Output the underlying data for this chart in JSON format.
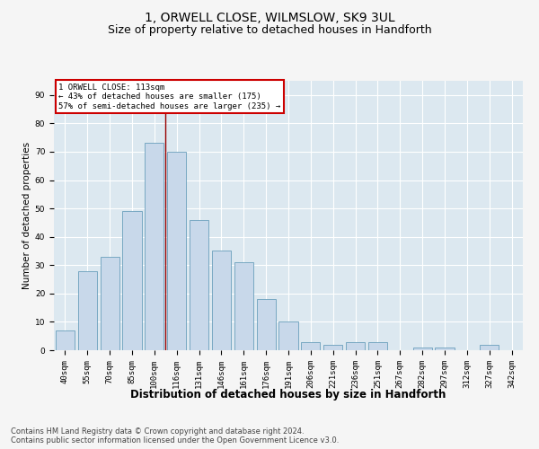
{
  "title": "1, ORWELL CLOSE, WILMSLOW, SK9 3UL",
  "subtitle": "Size of property relative to detached houses in Handforth",
  "xlabel": "Distribution of detached houses by size in Handforth",
  "ylabel": "Number of detached properties",
  "categories": [
    "40sqm",
    "55sqm",
    "70sqm",
    "85sqm",
    "100sqm",
    "116sqm",
    "131sqm",
    "146sqm",
    "161sqm",
    "176sqm",
    "191sqm",
    "206sqm",
    "221sqm",
    "236sqm",
    "251sqm",
    "267sqm",
    "282sqm",
    "297sqm",
    "312sqm",
    "327sqm",
    "342sqm"
  ],
  "values": [
    7,
    28,
    33,
    49,
    73,
    70,
    46,
    35,
    31,
    18,
    10,
    3,
    2,
    3,
    3,
    0,
    1,
    1,
    0,
    2,
    0
  ],
  "bar_color": "#c8d8ea",
  "bar_edge_color": "#6a9fbb",
  "vline_color": "#990000",
  "vline_x_index": 4.5,
  "annotation_title": "1 ORWELL CLOSE: 113sqm",
  "annotation_line1": "← 43% of detached houses are smaller (175)",
  "annotation_line2": "57% of semi-detached houses are larger (235) →",
  "annotation_box_color": "#ffffff",
  "annotation_box_edge_color": "#cc0000",
  "ylim": [
    0,
    95
  ],
  "yticks": [
    0,
    10,
    20,
    30,
    40,
    50,
    60,
    70,
    80,
    90
  ],
  "plot_bg_color": "#dce8f0",
  "fig_bg_color": "#f5f5f5",
  "footer_line1": "Contains HM Land Registry data © Crown copyright and database right 2024.",
  "footer_line2": "Contains public sector information licensed under the Open Government Licence v3.0.",
  "title_fontsize": 10,
  "subtitle_fontsize": 9,
  "xlabel_fontsize": 8.5,
  "ylabel_fontsize": 7.5,
  "tick_fontsize": 6.5,
  "annotation_fontsize": 6.5,
  "footer_fontsize": 6
}
